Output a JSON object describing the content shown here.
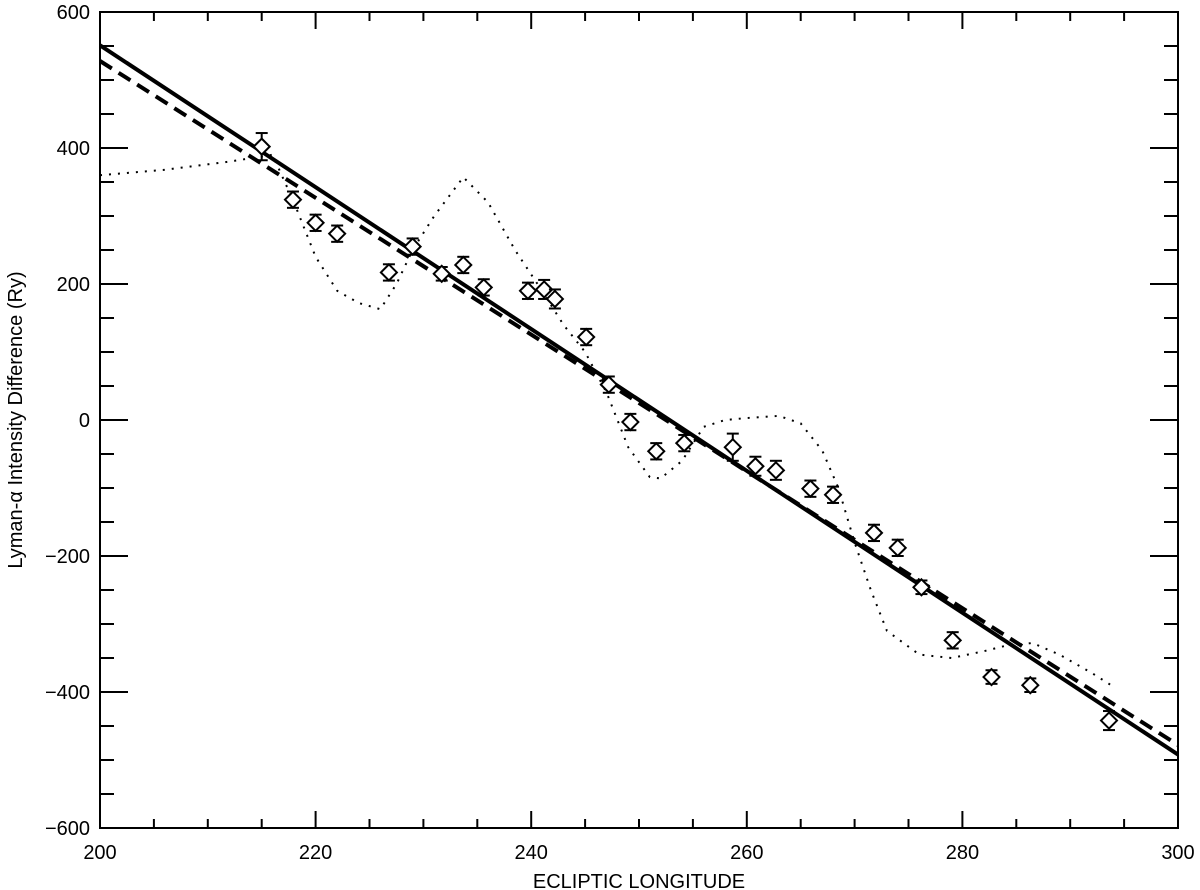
{
  "chart_data": {
    "type": "scatter",
    "title": "",
    "xlabel": "ECLIPTIC LONGITUDE",
    "ylabel": "Lyman-α Intensity Difference (Ry)",
    "xlim": [
      200,
      300
    ],
    "ylim": [
      -600,
      600
    ],
    "x_ticks": [
      200,
      220,
      240,
      260,
      280,
      300
    ],
    "x_tick_labels": [
      "200",
      "220",
      "240",
      "260",
      "280",
      "300"
    ],
    "y_ticks": [
      -600,
      -400,
      -200,
      0,
      200,
      400,
      600
    ],
    "y_tick_labels": [
      "−600",
      "−400",
      "−200",
      "0",
      "200",
      "400",
      "600"
    ],
    "grid": false,
    "legend": "none",
    "series": [
      {
        "style": "diamond markers with error bars",
        "points": [
          {
            "x": 215.0,
            "y": 402,
            "err": 20
          },
          {
            "x": 217.9,
            "y": 324,
            "err": 12
          },
          {
            "x": 220.0,
            "y": 290,
            "err": 12
          },
          {
            "x": 222.0,
            "y": 274,
            "err": 12
          },
          {
            "x": 226.8,
            "y": 217,
            "err": 12
          },
          {
            "x": 229.0,
            "y": 255,
            "err": 12
          },
          {
            "x": 231.7,
            "y": 215,
            "err": 10
          },
          {
            "x": 233.7,
            "y": 228,
            "err": 12
          },
          {
            "x": 235.6,
            "y": 195,
            "err": 12
          },
          {
            "x": 239.7,
            "y": 190,
            "err": 12
          },
          {
            "x": 241.2,
            "y": 192,
            "err": 14
          },
          {
            "x": 242.2,
            "y": 178,
            "err": 14
          },
          {
            "x": 245.1,
            "y": 122,
            "err": 12
          },
          {
            "x": 247.2,
            "y": 52,
            "err": 12
          },
          {
            "x": 249.2,
            "y": -3,
            "err": 12
          },
          {
            "x": 251.6,
            "y": -46,
            "err": 12
          },
          {
            "x": 254.2,
            "y": -34,
            "err": 12
          },
          {
            "x": 258.7,
            "y": -40,
            "err": 20
          },
          {
            "x": 260.8,
            "y": -68,
            "err": 14
          },
          {
            "x": 262.7,
            "y": -74,
            "err": 14
          },
          {
            "x": 265.9,
            "y": -101,
            "err": 12
          },
          {
            "x": 268.0,
            "y": -110,
            "err": 12
          },
          {
            "x": 271.8,
            "y": -166,
            "err": 12
          },
          {
            "x": 274.0,
            "y": -188,
            "err": 12
          },
          {
            "x": 276.2,
            "y": -246,
            "err": 10
          },
          {
            "x": 279.1,
            "y": -324,
            "err": 12
          },
          {
            "x": 282.7,
            "y": -378,
            "err": 10
          },
          {
            "x": 286.3,
            "y": -390,
            "err": 10
          },
          {
            "x": 293.6,
            "y": -442,
            "err": 14
          }
        ]
      },
      {
        "style": "solid line",
        "points": [
          {
            "x": 200,
            "y": 551
          },
          {
            "x": 300,
            "y": -492
          }
        ]
      },
      {
        "style": "dashed line",
        "points": [
          {
            "x": 200,
            "y": 528
          },
          {
            "x": 300,
            "y": -478
          }
        ]
      },
      {
        "style": "dotted line",
        "points": [
          {
            "x": 200,
            "y": 360
          },
          {
            "x": 206,
            "y": 368
          },
          {
            "x": 212,
            "y": 380
          },
          {
            "x": 216,
            "y": 390
          },
          {
            "x": 218,
            "y": 320
          },
          {
            "x": 220,
            "y": 240
          },
          {
            "x": 222,
            "y": 190
          },
          {
            "x": 224,
            "y": 172
          },
          {
            "x": 226,
            "y": 163
          },
          {
            "x": 227.5,
            "y": 200
          },
          {
            "x": 229,
            "y": 250
          },
          {
            "x": 231,
            "y": 300
          },
          {
            "x": 233.7,
            "y": 357
          },
          {
            "x": 236,
            "y": 320
          },
          {
            "x": 238.5,
            "y": 250
          },
          {
            "x": 241,
            "y": 190
          },
          {
            "x": 243,
            "y": 140
          },
          {
            "x": 245,
            "y": 100
          },
          {
            "x": 247,
            "y": 40
          },
          {
            "x": 249,
            "y": -40
          },
          {
            "x": 251,
            "y": -84
          },
          {
            "x": 252,
            "y": -86
          },
          {
            "x": 254,
            "y": -60
          },
          {
            "x": 256,
            "y": -10
          },
          {
            "x": 258,
            "y": 0
          },
          {
            "x": 260,
            "y": 3
          },
          {
            "x": 263,
            "y": 6
          },
          {
            "x": 265,
            "y": -5
          },
          {
            "x": 267,
            "y": -45
          },
          {
            "x": 268.5,
            "y": -100
          },
          {
            "x": 270,
            "y": -180
          },
          {
            "x": 271.5,
            "y": -250
          },
          {
            "x": 273,
            "y": -310
          },
          {
            "x": 276,
            "y": -345
          },
          {
            "x": 279,
            "y": -350
          },
          {
            "x": 282,
            "y": -340
          },
          {
            "x": 284,
            "y": -332
          },
          {
            "x": 286.5,
            "y": -328
          },
          {
            "x": 289,
            "y": -345
          },
          {
            "x": 292,
            "y": -372
          },
          {
            "x": 294,
            "y": -392
          }
        ]
      }
    ]
  }
}
